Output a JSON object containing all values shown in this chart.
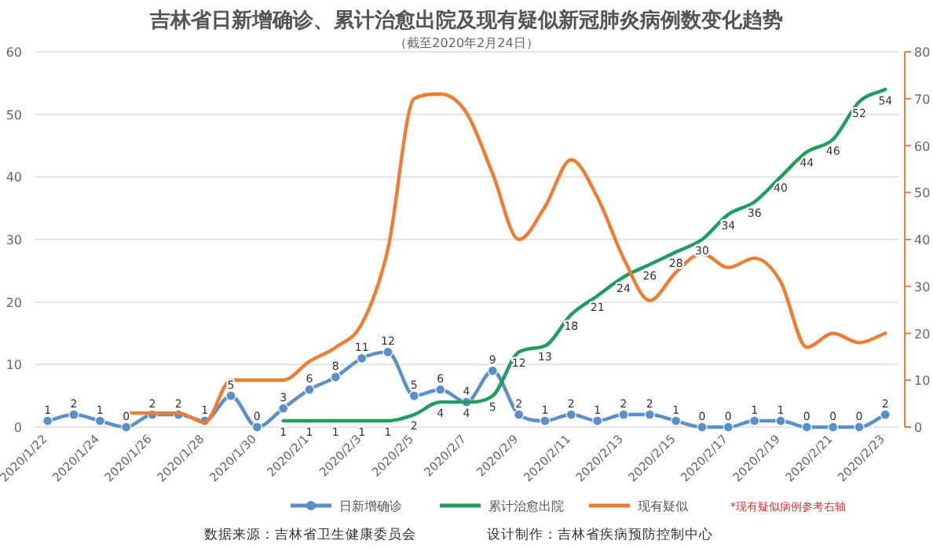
{
  "chart_data": {
    "type": "line",
    "title": "吉林省日新增确诊、累计治愈出院及现有疑似新冠肺炎病例数变化趋势",
    "subtitle": "（截至2020年2月24日）",
    "categories": [
      "2020/1/22",
      null,
      "2020/1/24",
      null,
      "2020/1/26",
      null,
      "2020/1/28",
      null,
      "2020/1/30",
      null,
      "2020/2/1",
      null,
      "2020/2/3",
      null,
      "2020/2/5",
      null,
      "2020/2/7",
      null,
      "2020/2/9",
      null,
      "2020/2/11",
      null,
      "2020/2/13",
      null,
      "2020/2/15",
      null,
      "2020/2/17",
      null,
      "2020/2/19",
      null,
      "2020/2/21",
      null,
      "2020/2/23"
    ],
    "series": [
      {
        "name": "日新增确诊",
        "color": "#5b8fc7",
        "marker": "circle",
        "data_labels": true,
        "values": [
          1,
          2,
          1,
          0,
          2,
          2,
          1,
          5,
          0,
          3,
          6,
          8,
          11,
          12,
          5,
          6,
          4,
          9,
          2,
          1,
          2,
          1,
          2,
          2,
          1,
          0,
          0,
          1,
          1,
          0,
          0,
          0,
          2
        ]
      },
      {
        "name": "累计治愈出院",
        "color": "#1e9e5e",
        "marker": "none",
        "data_labels": true,
        "values": [
          null,
          null,
          null,
          null,
          null,
          null,
          null,
          null,
          null,
          1,
          1,
          1,
          1,
          1,
          2,
          4,
          4,
          5,
          12,
          13,
          18,
          21,
          24,
          26,
          28,
          30,
          34,
          36,
          40,
          44,
          46,
          52,
          54
        ]
      },
      {
        "name": "现有疑似",
        "color": "#ed7d31",
        "marker": "none",
        "axis": "y2",
        "values": [
          null,
          null,
          null,
          3,
          3,
          3,
          1,
          10,
          10,
          10,
          14,
          17,
          22,
          38,
          70,
          71,
          67,
          54,
          40,
          47,
          57,
          49,
          36,
          27,
          33,
          37,
          34,
          36,
          31,
          17,
          20,
          18,
          20
        ]
      }
    ],
    "ylim": [
      0,
      60
    ],
    "yticks": [
      0,
      10,
      20,
      30,
      40,
      50,
      60
    ],
    "y2lim": [
      0,
      80
    ],
    "y2ticks": [
      0,
      10,
      20,
      30,
      40,
      50,
      60,
      70,
      80
    ],
    "grid": "y",
    "legend": "bottom",
    "line_style": "solid",
    "annotations": [
      "*现有疑似病例参考右轴",
      "数据来源：吉林省卫生健康委员会",
      "设计制作：吉林省疾病预防控制中心"
    ]
  }
}
